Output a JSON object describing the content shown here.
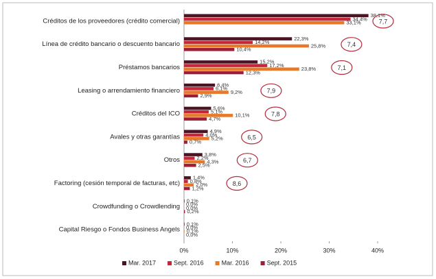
{
  "chart_data": {
    "type": "hbar",
    "categories": [
      "Créditos de los proveedores (crédito comercial)",
      "Línea de crédito bancario o descuento bancario",
      "Préstamos bancarios",
      "Leasing o arrendamiento financiero",
      "Créditos del ICO",
      "Avales y otras garantías",
      "Otros",
      "Factoring (cesión temporal de facturas, etc)",
      "Crowdfunding o Crowdlending",
      "Capital Riesgo o Fondos Business Angels"
    ],
    "series": [
      {
        "name": "Mar. 2017",
        "color": "#4a1423",
        "values": [
          38.1,
          22.3,
          15.2,
          6.4,
          5.6,
          4.9,
          3.8,
          1.4,
          0.1,
          0.1
        ],
        "value_labels": [
          "38,1%",
          "22,3%",
          "15,2%",
          "6,4%",
          "5,6%",
          "4,9%",
          "3,8%",
          "1,4%",
          "0,1%",
          "0,1%"
        ]
      },
      {
        "name": "Sept. 2016",
        "color": "#c4263a",
        "values": [
          34.4,
          14.2,
          17.2,
          6.1,
          5.1,
          4.0,
          2.2,
          0.8,
          0.0,
          0.0
        ],
        "value_labels": [
          "34,4%",
          "14,2%",
          "17,2%",
          "6,1%",
          "5,1%",
          "4,0%",
          "2,2%",
          "0,8%",
          "0,0%",
          "0,0%"
        ]
      },
      {
        "name": "Mar. 2016",
        "color": "#e8782a",
        "values": [
          33.1,
          25.8,
          23.8,
          9.2,
          10.1,
          5.2,
          4.3,
          2.0,
          0.0,
          0.1
        ],
        "value_labels": [
          "33,1%",
          "25,8%",
          "23,8%",
          "9,2%",
          "10,1%",
          "5,2%",
          "4,3%",
          "2,0%",
          "0,0%",
          "0,1%"
        ]
      },
      {
        "name": "Sept. 2015",
        "color": "#9e1e36",
        "values": [
          null,
          10.4,
          12.3,
          2.9,
          4.7,
          0.7,
          2.5,
          1.2,
          0.2,
          0.0
        ],
        "value_labels": [
          null,
          "10,4%",
          "12,3%",
          "2,9%",
          "4,7%",
          "0,7%",
          "2,5%",
          "1,2%",
          "0,2%",
          "0,0%"
        ]
      }
    ],
    "circled": [
      "7,7",
      "7,4",
      "7,1",
      "7,9",
      "7,8",
      "6,5",
      "6,7",
      "8,6",
      null,
      null
    ],
    "xlim": [
      0,
      40
    ],
    "xticks": [
      {
        "value": 0,
        "label": "0%"
      },
      {
        "value": 10,
        "label": "10%"
      },
      {
        "value": 20,
        "label": "20%"
      },
      {
        "value": 30,
        "label": "30%"
      },
      {
        "value": 40,
        "label": "40%"
      }
    ],
    "legend": "bottom"
  }
}
